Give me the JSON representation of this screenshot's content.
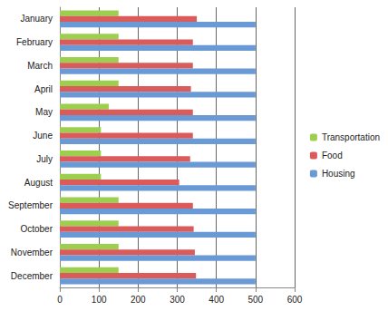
{
  "chart_data": {
    "type": "bar",
    "orientation": "horizontal",
    "categories": [
      "January",
      "February",
      "March",
      "April",
      "May",
      "June",
      "July",
      "August",
      "September",
      "October",
      "November",
      "December"
    ],
    "series": [
      {
        "name": "Transportation",
        "color": "#9dcf4f",
        "values": [
          150,
          150,
          150,
          150,
          125,
          105,
          105,
          105,
          150,
          150,
          150,
          150
        ]
      },
      {
        "name": "Food",
        "color": "#db5a5a",
        "values": [
          350,
          340,
          340,
          335,
          340,
          340,
          333,
          305,
          340,
          342,
          345,
          348
        ]
      },
      {
        "name": "Housing",
        "color": "#6a9ad6",
        "values": [
          500,
          500,
          500,
          500,
          500,
          500,
          500,
          500,
          500,
          500,
          500,
          500
        ]
      }
    ],
    "xlim": [
      0,
      600
    ],
    "xticks": [
      0,
      100,
      200,
      300,
      400,
      500,
      600
    ],
    "grid": true,
    "legend": "right"
  }
}
